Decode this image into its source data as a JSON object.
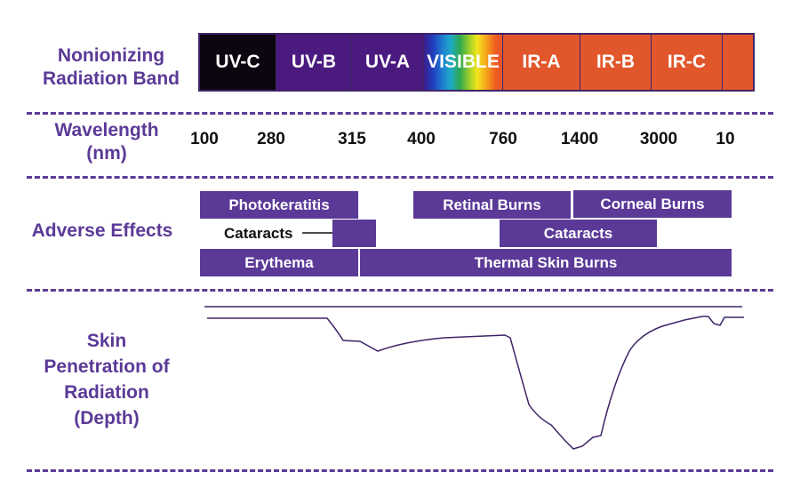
{
  "labels": {
    "band": [
      "Nonionizing",
      "Radiation Band"
    ],
    "wavelength": [
      "Wavelength",
      "(nm)"
    ],
    "effects": "Adverse Effects",
    "depth": [
      "Skin",
      "Penetration of",
      "Radiation",
      "(Depth)"
    ]
  },
  "bands": [
    {
      "label": "UV-C",
      "color": "#0d0610"
    },
    {
      "label": "UV-B",
      "color": "#4b1a7e"
    },
    {
      "label": "UV-A",
      "color": "#4b1a7e"
    },
    {
      "label": "VISIBLE",
      "color": "spectrum"
    },
    {
      "label": "IR-A",
      "color": "#e2562c"
    },
    {
      "label": "IR-B",
      "color": "#e2562c"
    },
    {
      "label": "IR-C",
      "color": "#e2562c"
    },
    {
      "label": "",
      "color": "#e2562c"
    }
  ],
  "wavelengths": [
    "100",
    "280",
    "315",
    "400",
    "760",
    "1400",
    "3000",
    "10"
  ],
  "effects": [
    {
      "label": "Photokeratitis"
    },
    {
      "label": "Retinal Burns"
    },
    {
      "label": "Corneal Burns"
    },
    {
      "label": "Cataracts"
    },
    {
      "label": "Cataracts"
    },
    {
      "label": "Erythema"
    },
    {
      "label": "Thermal Skin Burns"
    }
  ],
  "colors": {
    "accent": "#5b3a97",
    "uv_dark": "#0d0610",
    "uv_purple": "#4b1a7e",
    "ir_orange": "#e2562c"
  }
}
